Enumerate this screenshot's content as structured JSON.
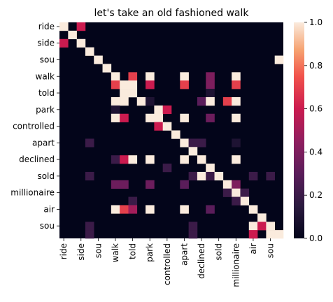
{
  "chart_data": {
    "type": "heatmap",
    "title": "let's take an old fashioned walk",
    "xlabel": "",
    "ylabel": "",
    "tokens": [
      "ride",
      "ride",
      "side",
      "side",
      "sou",
      "sou",
      "walk",
      "walk",
      "told",
      "told",
      "park",
      "park",
      "controlled",
      "controlled",
      "apart",
      "apart",
      "declined",
      "declined",
      "sold",
      "sold",
      "millionaire",
      "millionaire",
      "air",
      "air",
      "sou",
      "sou"
    ],
    "x_tick_labels": [
      "ride",
      "side",
      "sou",
      "walk",
      "told",
      "park",
      "controlled",
      "apart",
      "declined",
      "sold",
      "millionaire",
      "air",
      "sou"
    ],
    "y_tick_labels": [
      "ride",
      "side",
      "sou",
      "walk",
      "told",
      "park",
      "controlled",
      "apart",
      "declined",
      "sold",
      "millionaire",
      "air",
      "sou"
    ],
    "colorbar": {
      "range": [
        0.0,
        1.0
      ],
      "ticks": [
        "0.0",
        "0.2",
        "0.4",
        "0.6",
        "0.8",
        "1.0"
      ],
      "colormap": "rocket"
    },
    "cells": [
      [
        0,
        0,
        1.0
      ],
      [
        0,
        2,
        0.6
      ],
      [
        1,
        1,
        1.0
      ],
      [
        2,
        0,
        0.6
      ],
      [
        2,
        2,
        1.0
      ],
      [
        3,
        3,
        1.0
      ],
      [
        4,
        4,
        1.0
      ],
      [
        5,
        5,
        1.0
      ],
      [
        4,
        25,
        1.0
      ],
      [
        6,
        6,
        1.0
      ],
      [
        6,
        8,
        0.7
      ],
      [
        6,
        10,
        1.0
      ],
      [
        6,
        14,
        1.0
      ],
      [
        6,
        17,
        0.4
      ],
      [
        6,
        20,
        1.0
      ],
      [
        7,
        6,
        0.7
      ],
      [
        7,
        7,
        1.0
      ],
      [
        7,
        8,
        1.0
      ],
      [
        7,
        10,
        0.6
      ],
      [
        7,
        14,
        0.7
      ],
      [
        7,
        17,
        0.4
      ],
      [
        7,
        20,
        0.7
      ],
      [
        8,
        7,
        1.0
      ],
      [
        8,
        8,
        1.0
      ],
      [
        8,
        17,
        0.1
      ],
      [
        9,
        6,
        1.0
      ],
      [
        9,
        7,
        1.0
      ],
      [
        9,
        9,
        1.0
      ],
      [
        9,
        10,
        0.1
      ],
      [
        9,
        16,
        0.3
      ],
      [
        9,
        17,
        1.0
      ],
      [
        9,
        19,
        0.7
      ],
      [
        9,
        20,
        1.0
      ],
      [
        10,
        6,
        0.1
      ],
      [
        10,
        11,
        1.0
      ],
      [
        10,
        12,
        0.6
      ],
      [
        11,
        6,
        1.0
      ],
      [
        11,
        7,
        0.6
      ],
      [
        11,
        10,
        1.0
      ],
      [
        11,
        11,
        1.0
      ],
      [
        11,
        14,
        1.0
      ],
      [
        11,
        17,
        0.35
      ],
      [
        11,
        20,
        1.0
      ],
      [
        12,
        11,
        0.6
      ],
      [
        12,
        12,
        1.0
      ],
      [
        13,
        13,
        1.0
      ],
      [
        14,
        3,
        0.2
      ],
      [
        14,
        14,
        1.0
      ],
      [
        14,
        15,
        0.2
      ],
      [
        14,
        16,
        0.2
      ],
      [
        14,
        20,
        0.1
      ],
      [
        15,
        15,
        1.0
      ],
      [
        16,
        6,
        0.2
      ],
      [
        16,
        7,
        0.6
      ],
      [
        16,
        8,
        1.0
      ],
      [
        16,
        10,
        1.0
      ],
      [
        16,
        14,
        1.0
      ],
      [
        16,
        16,
        1.0
      ],
      [
        16,
        20,
        1.0
      ],
      [
        17,
        17,
        1.0
      ],
      [
        17,
        12,
        0.2
      ],
      [
        18,
        3,
        0.2
      ],
      [
        18,
        15,
        0.2
      ],
      [
        18,
        16,
        1.0
      ],
      [
        18,
        17,
        0.2
      ],
      [
        18,
        18,
        1.0
      ],
      [
        18,
        22,
        0.2
      ],
      [
        18,
        24,
        0.2
      ],
      [
        19,
        6,
        0.35
      ],
      [
        19,
        7,
        0.35
      ],
      [
        19,
        10,
        0.35
      ],
      [
        19,
        14,
        0.3
      ],
      [
        19,
        19,
        1.0
      ],
      [
        19,
        20,
        0.4
      ],
      [
        20,
        19,
        0.2
      ],
      [
        20,
        20,
        1.0
      ],
      [
        20,
        21,
        0.2
      ],
      [
        21,
        8,
        0.2
      ],
      [
        21,
        21,
        1.0
      ],
      [
        21,
        20,
        0.2
      ],
      [
        22,
        6,
        1.0
      ],
      [
        22,
        7,
        0.7
      ],
      [
        22,
        8,
        0.5
      ],
      [
        22,
        10,
        1.0
      ],
      [
        22,
        14,
        1.0
      ],
      [
        22,
        17,
        0.3
      ],
      [
        22,
        22,
        1.0
      ],
      [
        23,
        23,
        1.0
      ],
      [
        24,
        3,
        0.2
      ],
      [
        24,
        15,
        0.2
      ],
      [
        24,
        22,
        1.0
      ],
      [
        24,
        23,
        0.6
      ],
      [
        24,
        24,
        1.0
      ],
      [
        25,
        3,
        0.2
      ],
      [
        25,
        15,
        0.2
      ],
      [
        25,
        22,
        0.6
      ],
      [
        25,
        24,
        1.0
      ],
      [
        25,
        25,
        1.0
      ]
    ]
  }
}
